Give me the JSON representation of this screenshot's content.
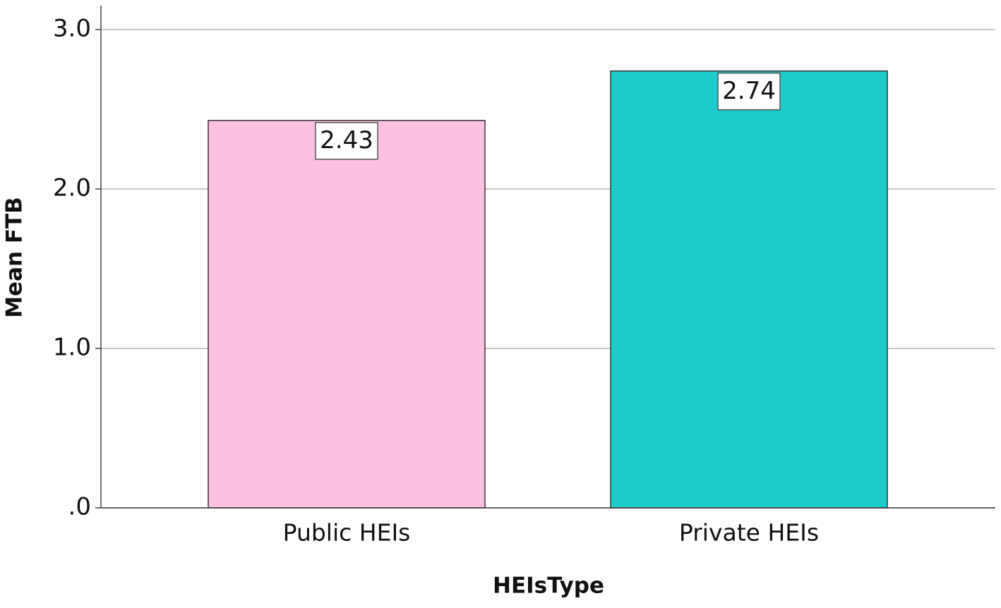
{
  "chart_data": {
    "type": "bar",
    "x_label": "HEIsType",
    "y_label": "Mean FTB",
    "categories": [
      "Public HEIs",
      "Private HEIs"
    ],
    "values": [
      2.43,
      2.74
    ],
    "colors": [
      "#fcc0e0",
      "#1ccccc"
    ],
    "ylim": [
      0,
      3.15
    ],
    "yticks": [
      {
        "value": 0,
        "label": ".0"
      },
      {
        "value": 1,
        "label": "1.0"
      },
      {
        "value": 2,
        "label": "2.0"
      },
      {
        "value": 3,
        "label": "3.0"
      }
    ],
    "grid": true
  }
}
